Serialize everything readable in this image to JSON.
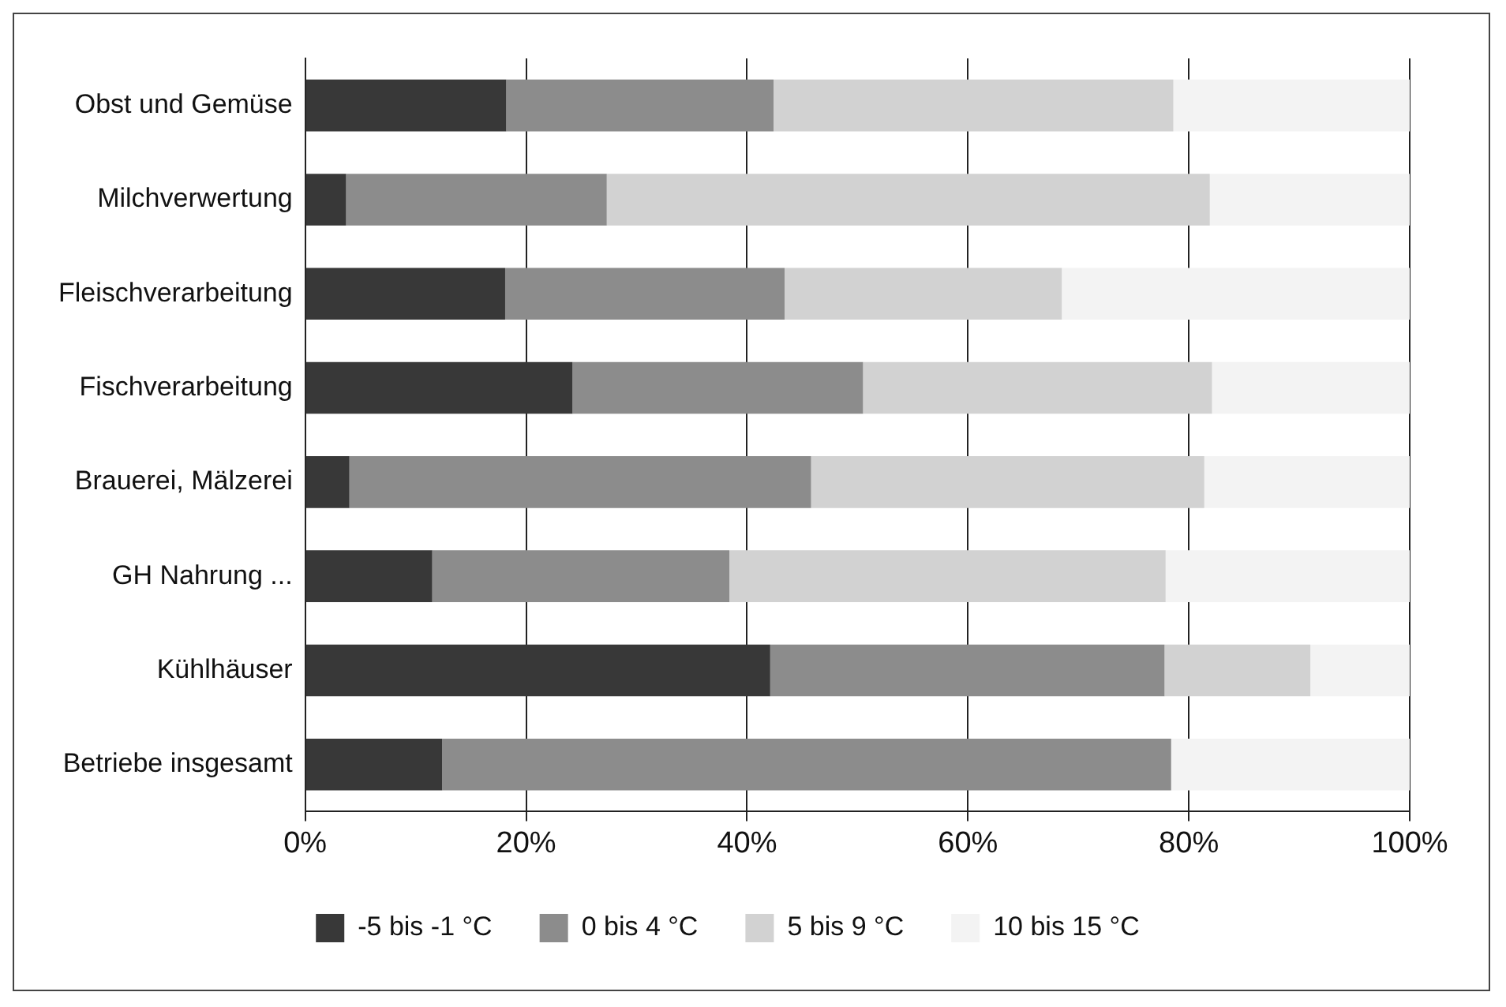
{
  "chart_data": {
    "type": "bar",
    "orientation": "horizontal",
    "stacked": true,
    "categories": [
      "Obst und Gemüse",
      "Milchverwertung",
      "Fleischverarbeitung",
      "Fischverarbeitung",
      "Brauerei, Mälzerei",
      "GH Nahrung ...",
      "Kühlhäuser",
      "Betriebe insgesamt"
    ],
    "series": [
      {
        "name": "-5 bis -1 °C",
        "color": "#383838",
        "values": [
          18.2,
          3.7,
          18.1,
          24.2,
          4.0,
          11.5,
          42.1,
          12.4
        ]
      },
      {
        "name": "0 bis 4 °C",
        "color": "#8c8c8c",
        "values": [
          24.2,
          23.6,
          25.3,
          26.3,
          41.8,
          26.9,
          35.7,
          66.0
        ]
      },
      {
        "name": "5 bis 9 °C",
        "color": "#d2d2d2",
        "values": [
          36.2,
          54.6,
          25.1,
          31.6,
          35.6,
          39.5,
          13.2,
          0
        ]
      },
      {
        "name": "10 bis 15 °C",
        "color": "#f3f3f3",
        "values": [
          21.4,
          18.1,
          31.5,
          17.9,
          18.6,
          22.1,
          9.0,
          21.6
        ]
      }
    ],
    "xlim": [
      0,
      100
    ],
    "xticks": [
      {
        "value": 0,
        "label": "0%"
      },
      {
        "value": 20,
        "label": "20%"
      },
      {
        "value": 40,
        "label": "40%"
      },
      {
        "value": 60,
        "label": "60%"
      },
      {
        "value": 80,
        "label": "80%"
      },
      {
        "value": 100,
        "label": "100%"
      }
    ],
    "grid": "x",
    "legend": "bottom"
  }
}
